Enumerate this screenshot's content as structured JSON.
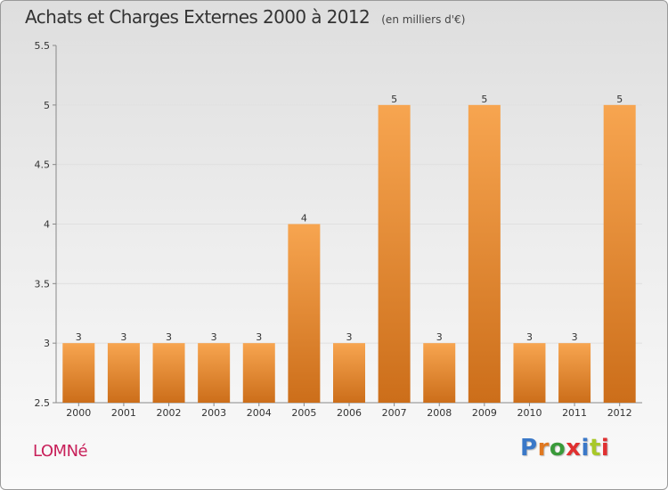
{
  "header": {
    "title": "Achats et Charges Externes 2000 à 2012",
    "unit": "(en milliers d'€)"
  },
  "footer": {
    "commune": "LOMNé",
    "brand": "Proxiti",
    "brand_colors": [
      "#3a78c8",
      "#e07820",
      "#3a9a3a",
      "#e03030",
      "#3a78c8",
      "#a8c828",
      "#e03030"
    ]
  },
  "colors": {
    "bar_top": "#f7a550",
    "bar_bottom": "#cc6e1a",
    "gridline": "#e0e0e0",
    "axis": "#888888",
    "text": "#333333",
    "commune": "#c8205a"
  },
  "chart_data": {
    "type": "bar",
    "title": "Achats et Charges Externes 2000 à 2012",
    "subtitle": "(en milliers d'€)",
    "categories": [
      "2000",
      "2001",
      "2002",
      "2003",
      "2004",
      "2005",
      "2006",
      "2007",
      "2008",
      "2009",
      "2010",
      "2011",
      "2012"
    ],
    "values": [
      3,
      3,
      3,
      3,
      3,
      4,
      3,
      5,
      3,
      5,
      3,
      3,
      5
    ],
    "ylim": [
      2.5,
      5.5
    ],
    "yticks": [
      2.5,
      3,
      3.5,
      4,
      4.5,
      5,
      5.5
    ],
    "ytick_labels": [
      "2.5",
      "3",
      "3.5",
      "4",
      "4.5",
      "5",
      "5.5"
    ],
    "grid": true,
    "data_labels": true
  }
}
